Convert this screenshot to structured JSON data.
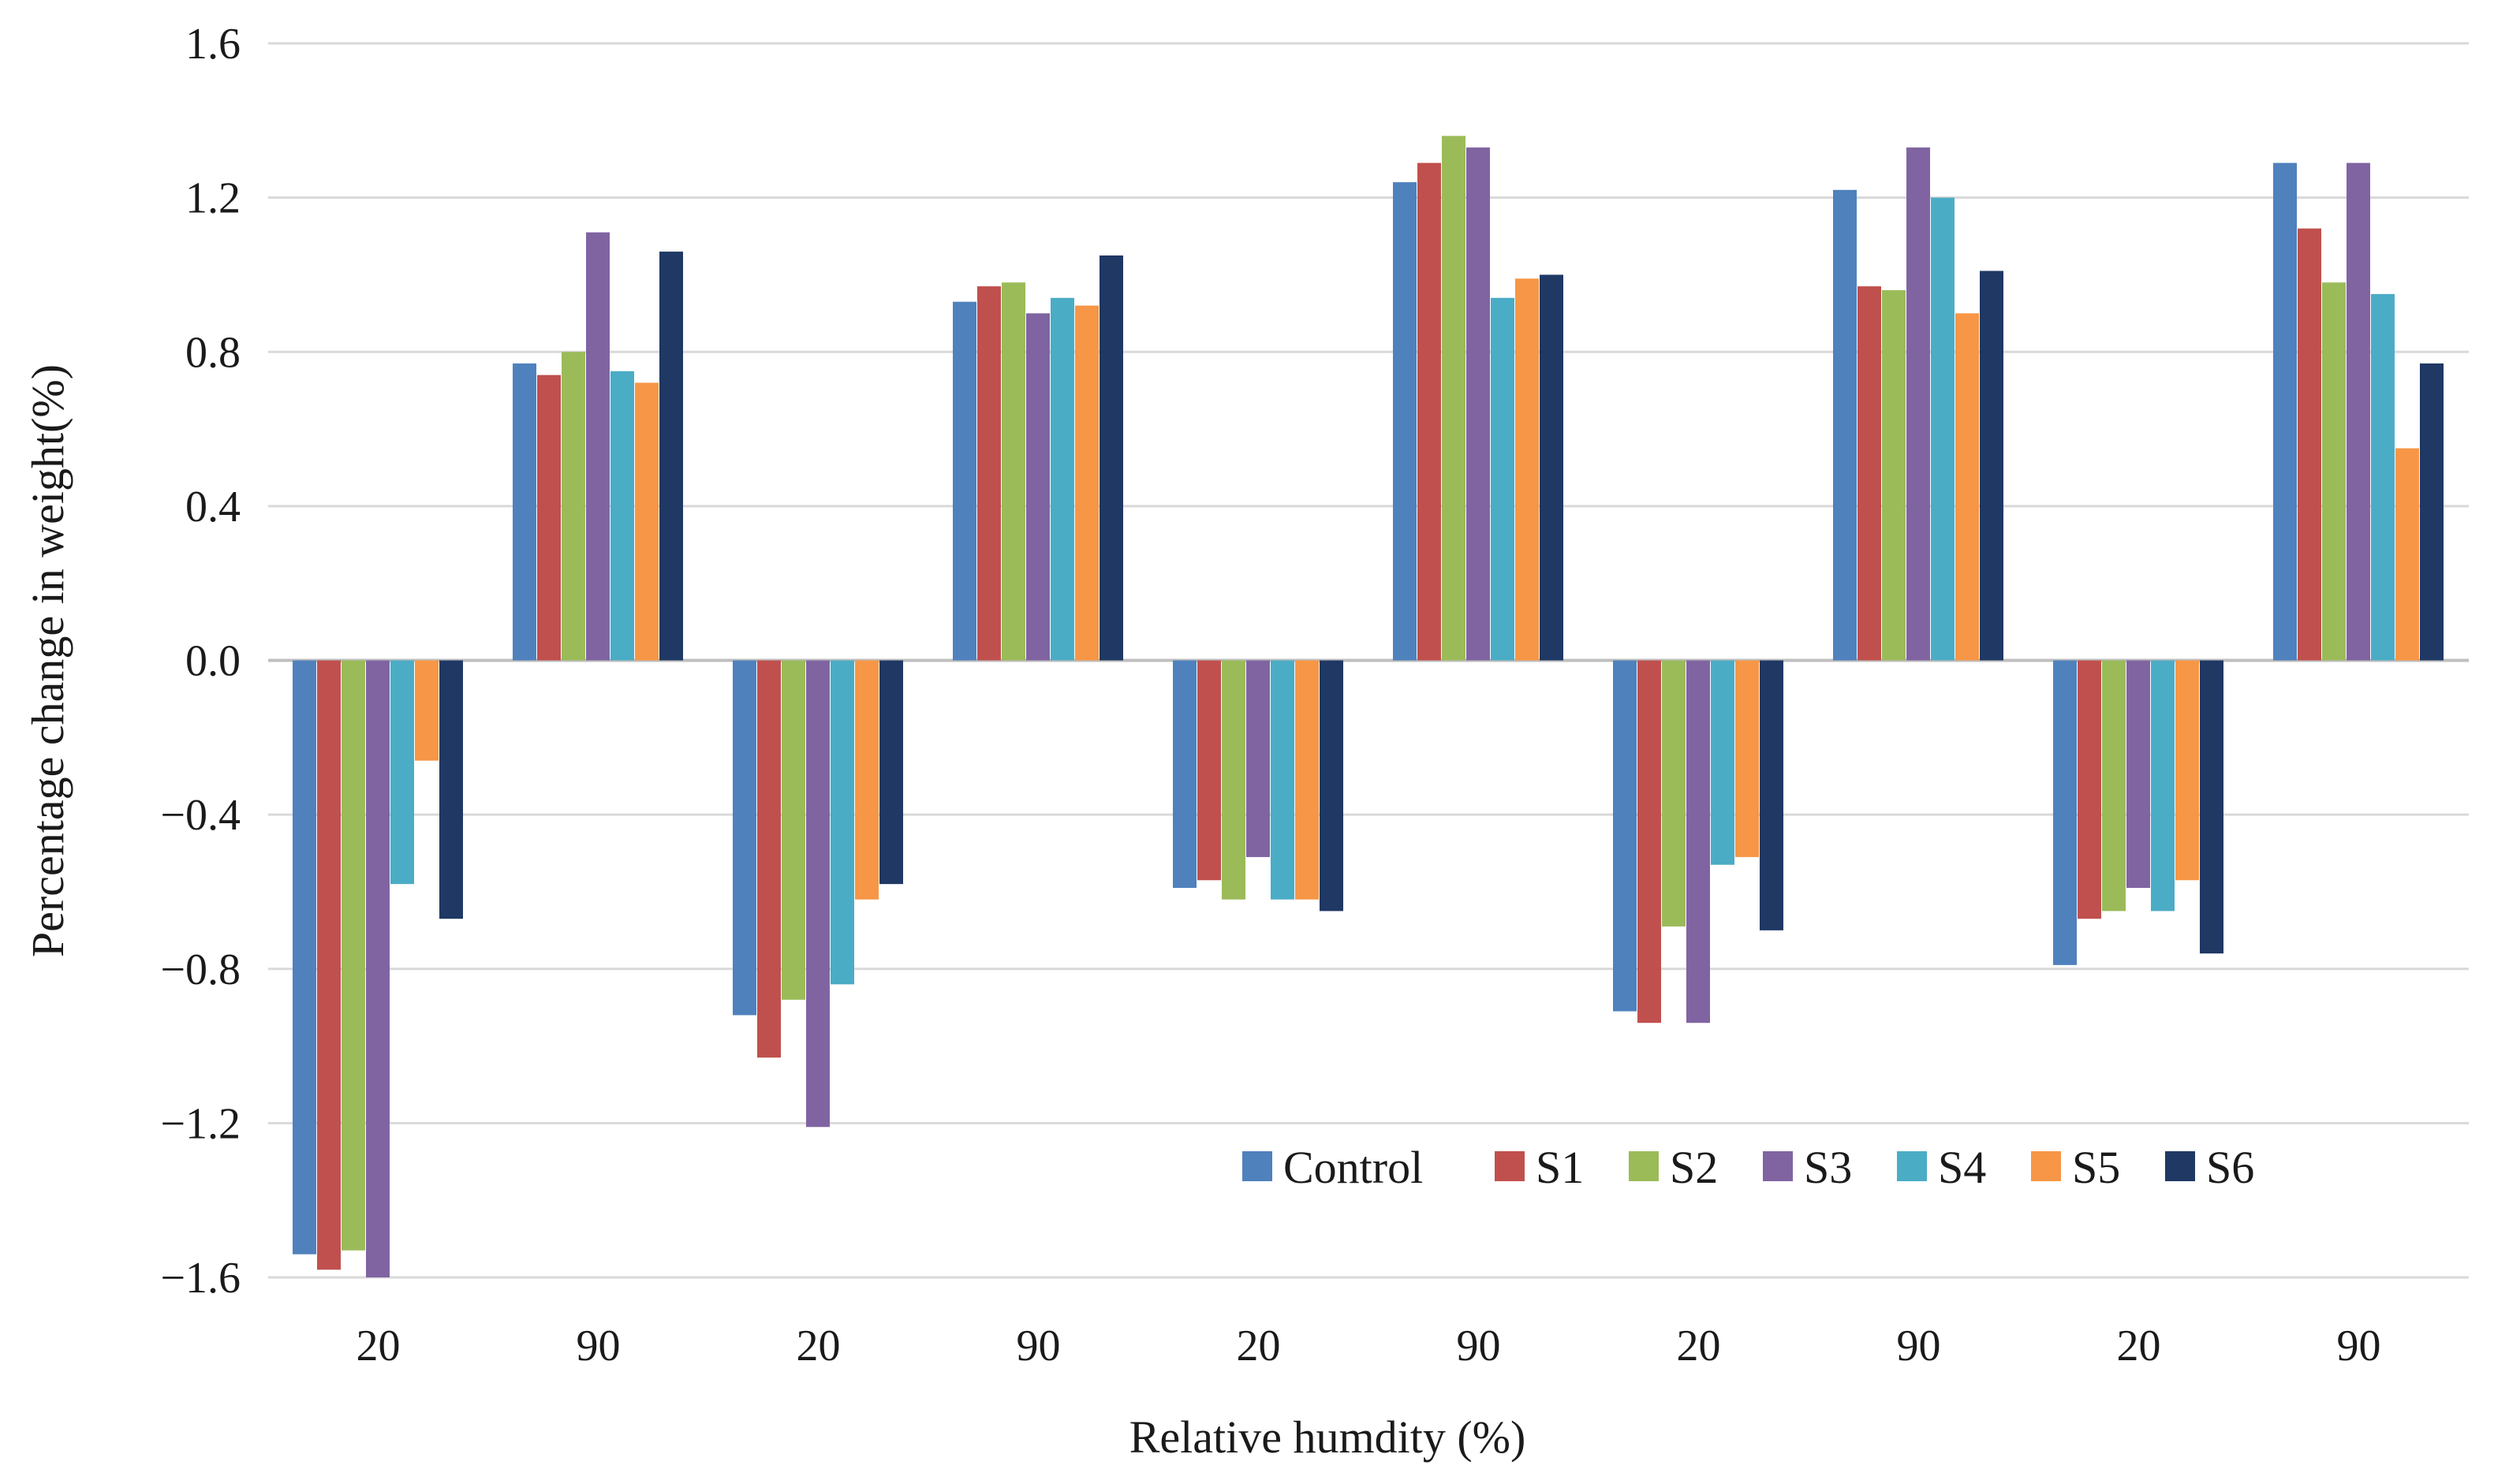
{
  "chart_data": {
    "type": "bar",
    "title": "",
    "xlabel": "Relative humdity (%)",
    "ylabel": "Percentage change in weight(%)",
    "ylim": [
      -1.6,
      1.6
    ],
    "yticks": [
      1.6,
      1.2,
      0.8,
      0.4,
      0.0,
      -0.4,
      -0.8,
      -1.2,
      -1.6
    ],
    "ytick_labels": [
      "1.6",
      "1.2",
      "0.8",
      "0.4",
      "0.0",
      "−0.4",
      "−0.8",
      "−1.2",
      "−1.6"
    ],
    "categories": [
      "20",
      "90",
      "20",
      "90",
      "20",
      "90",
      "20",
      "90",
      "20",
      "90"
    ],
    "grid": true,
    "legend_position": "bottom-right",
    "series": [
      {
        "name": "Control",
        "color": "#4f81bd",
        "values": [
          -1.54,
          0.77,
          -0.92,
          0.93,
          -0.59,
          1.24,
          -0.91,
          1.22,
          -0.79,
          1.29
        ]
      },
      {
        "name": "S1",
        "color": "#c0504d",
        "values": [
          -1.58,
          0.74,
          -1.03,
          0.97,
          -0.57,
          1.29,
          -0.94,
          0.97,
          -0.67,
          1.12
        ]
      },
      {
        "name": "S2",
        "color": "#9bbb59",
        "values": [
          -1.53,
          0.8,
          -0.88,
          0.98,
          -0.62,
          1.36,
          -0.69,
          0.96,
          -0.65,
          0.98
        ]
      },
      {
        "name": "S3",
        "color": "#8064a2",
        "values": [
          -1.6,
          1.11,
          -1.21,
          0.9,
          -0.51,
          1.33,
          -0.94,
          1.33,
          -0.59,
          1.29
        ]
      },
      {
        "name": "S4",
        "color": "#4bacc6",
        "values": [
          -0.58,
          0.75,
          -0.84,
          0.94,
          -0.62,
          0.94,
          -0.53,
          1.2,
          -0.65,
          0.95
        ]
      },
      {
        "name": "S5",
        "color": "#f79646",
        "values": [
          -0.26,
          0.72,
          -0.62,
          0.92,
          -0.62,
          0.99,
          -0.51,
          0.9,
          -0.57,
          0.55
        ]
      },
      {
        "name": "S6",
        "color": "#1f3864",
        "values": [
          -0.67,
          1.06,
          -0.58,
          1.05,
          -0.65,
          1.0,
          -0.7,
          1.01,
          -0.76,
          0.77
        ]
      }
    ]
  }
}
